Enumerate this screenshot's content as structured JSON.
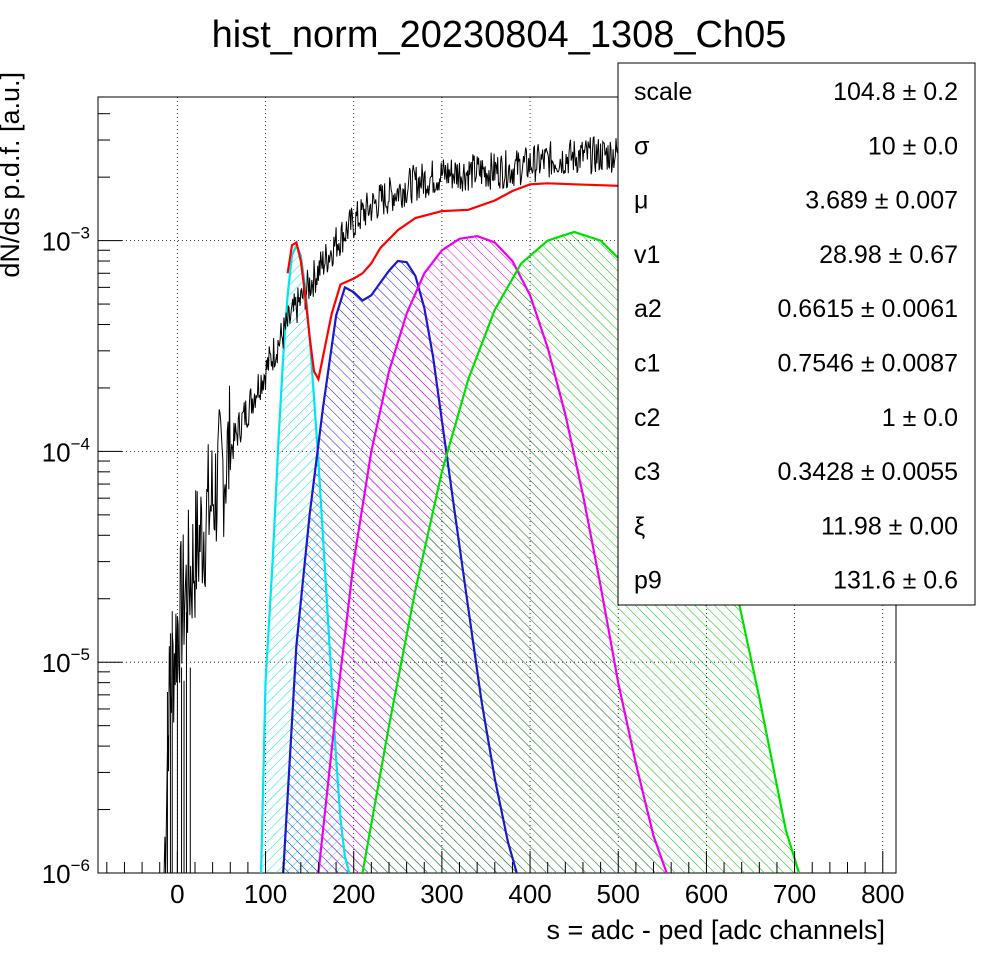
{
  "chart_data": {
    "type": "line",
    "title": "hist_norm_20230804_1308_Ch05",
    "xlabel": "s = adc - ped [adc channels]",
    "ylabel": "dN/ds p.d.f. [a.u.]",
    "xlim": [
      -90,
      815
    ],
    "ylim": [
      1e-06,
      0.0048
    ],
    "yscale": "log",
    "grid": true,
    "x_ticks": [
      0,
      100,
      200,
      300,
      400,
      500,
      600,
      700,
      800
    ],
    "y_ticks": [
      {
        "value": 0.001,
        "base": "10",
        "exp": "−3"
      },
      {
        "value": 0.0001,
        "base": "10",
        "exp": "−4"
      },
      {
        "value": 1e-05,
        "base": "10",
        "exp": "−5"
      },
      {
        "value": 1e-06,
        "base": "10",
        "exp": "−6"
      }
    ],
    "series": [
      {
        "color": "#000000",
        "style": "histogram",
        "x": [
          -15,
          -10,
          0,
          10,
          20,
          30,
          40,
          50,
          60,
          70,
          80,
          90,
          100,
          110,
          120,
          130,
          140,
          150,
          160,
          170,
          180,
          190,
          200,
          210,
          220,
          230,
          240,
          250,
          260,
          270,
          280,
          290,
          300,
          320,
          340,
          360,
          380,
          400,
          420,
          440,
          460,
          480,
          500,
          520,
          540,
          560,
          580,
          600,
          610
        ],
        "y": [
          1e-06,
          6e-06,
          1.5e-05,
          2.2e-05,
          3.2e-05,
          4.5e-05,
          6e-05,
          8e-05,
          0.0001,
          0.00013,
          0.00016,
          0.0002,
          0.00024,
          0.0003,
          0.00036,
          0.00044,
          0.00052,
          0.00062,
          0.00072,
          0.00084,
          0.00098,
          0.0011,
          0.00122,
          0.00134,
          0.00145,
          0.00155,
          0.00163,
          0.00172,
          0.0018,
          0.00188,
          0.00194,
          0.002,
          0.00206,
          0.0021,
          0.00212,
          0.00215,
          0.0022,
          0.0023,
          0.0024,
          0.00248,
          0.00252,
          0.00255,
          0.0026,
          0.00255,
          0.00245,
          0.00235,
          0.00225,
          0.0021,
          0.002
        ]
      },
      {
        "color": "#ff0000",
        "style": "line",
        "x": [
          125,
          130,
          135,
          140,
          145,
          150,
          155,
          160,
          165,
          175,
          185,
          200,
          210,
          220,
          230,
          250,
          270,
          300,
          330,
          360,
          380,
          400,
          420,
          450,
          500,
          520,
          550,
          580,
          620,
          660,
          700,
          740,
          780,
          810
        ],
        "y": [
          0.0007,
          0.00095,
          0.00098,
          0.0008,
          0.00055,
          0.00035,
          0.00024,
          0.00022,
          0.00028,
          0.00045,
          0.00062,
          0.00066,
          0.0007,
          0.00078,
          0.00092,
          0.00112,
          0.00128,
          0.00138,
          0.0014,
          0.00155,
          0.00172,
          0.00185,
          0.00187,
          0.00185,
          0.00182,
          0.00178,
          0.00172,
          0.00162,
          0.00145,
          0.00125,
          0.00098,
          0.0007,
          0.00044,
          0.00022
        ]
      },
      {
        "color": "#00e5ee",
        "style": "filled",
        "x": [
          95,
          100,
          108,
          115,
          120,
          125,
          130,
          135,
          140,
          145,
          150,
          155,
          160,
          165,
          170,
          175,
          180,
          185,
          190,
          195
        ],
        "y": [
          1e-06,
          8e-06,
          3e-05,
          0.00012,
          0.00028,
          0.00055,
          0.00085,
          0.00095,
          0.00085,
          0.0006,
          0.00035,
          0.00018,
          9e-05,
          4e-05,
          1.8e-05,
          8e-06,
          3.5e-06,
          1.8e-06,
          1.2e-06,
          1e-06
        ]
      },
      {
        "color": "#1a1acc",
        "style": "filled",
        "x": [
          120,
          135,
          150,
          165,
          180,
          190,
          200,
          210,
          220,
          230,
          240,
          250,
          260,
          270,
          280,
          290,
          300,
          315,
          330,
          345,
          360,
          375,
          385
        ],
        "y": [
          1e-06,
          1.2e-05,
          5e-05,
          0.00016,
          0.00044,
          0.0006,
          0.00057,
          0.00052,
          0.00055,
          0.00063,
          0.00072,
          0.0008,
          0.00079,
          0.00068,
          0.00048,
          0.00028,
          0.00014,
          5e-05,
          1.8e-05,
          6.5e-06,
          2.8e-06,
          1.4e-06,
          1e-06
        ]
      },
      {
        "color": "#ee00ee",
        "style": "filled",
        "x": [
          160,
          180,
          200,
          220,
          240,
          260,
          280,
          300,
          320,
          340,
          360,
          380,
          400,
          420,
          440,
          460,
          480,
          500,
          520,
          540,
          555
        ],
        "y": [
          1e-06,
          6e-06,
          3e-05,
          0.0001,
          0.00024,
          0.00045,
          0.0007,
          0.0009,
          0.00102,
          0.00105,
          0.00098,
          0.0008,
          0.00055,
          0.00031,
          0.00015,
          6.2e-05,
          2.3e-05,
          8e-06,
          3.3e-06,
          1.5e-06,
          1e-06
        ]
      },
      {
        "color": "#00e000",
        "style": "filled",
        "x": [
          210,
          240,
          270,
          300,
          330,
          360,
          390,
          420,
          450,
          480,
          510,
          540,
          570,
          600,
          630,
          660,
          690,
          705
        ],
        "y": [
          1e-06,
          5e-06,
          2.2e-05,
          8e-05,
          0.00022,
          0.00047,
          0.00078,
          0.001,
          0.0011,
          0.001,
          0.00075,
          0.00046,
          0.00022,
          8.5e-05,
          2.6e-05,
          6.8e-06,
          1.6e-06,
          1e-06
        ]
      }
    ]
  },
  "stats": [
    {
      "name": "scale",
      "value": "104.8 ± 0.2"
    },
    {
      "name": "σ",
      "value": "10 ± 0.0"
    },
    {
      "name": "μ",
      "value": "3.689 ± 0.007"
    },
    {
      "name": "v1",
      "value": "28.98 ± 0.67"
    },
    {
      "name": "a2",
      "value": "0.6615 ± 0.0061"
    },
    {
      "name": "c1",
      "value": "0.7546 ± 0.0087"
    },
    {
      "name": "c2",
      "value": "1 ± 0.0"
    },
    {
      "name": "c3",
      "value": "0.3428 ± 0.0055"
    },
    {
      "name": "ξ",
      "value": "11.98 ± 0.00"
    },
    {
      "name": "p9",
      "value": "131.6 ± 0.6"
    }
  ]
}
